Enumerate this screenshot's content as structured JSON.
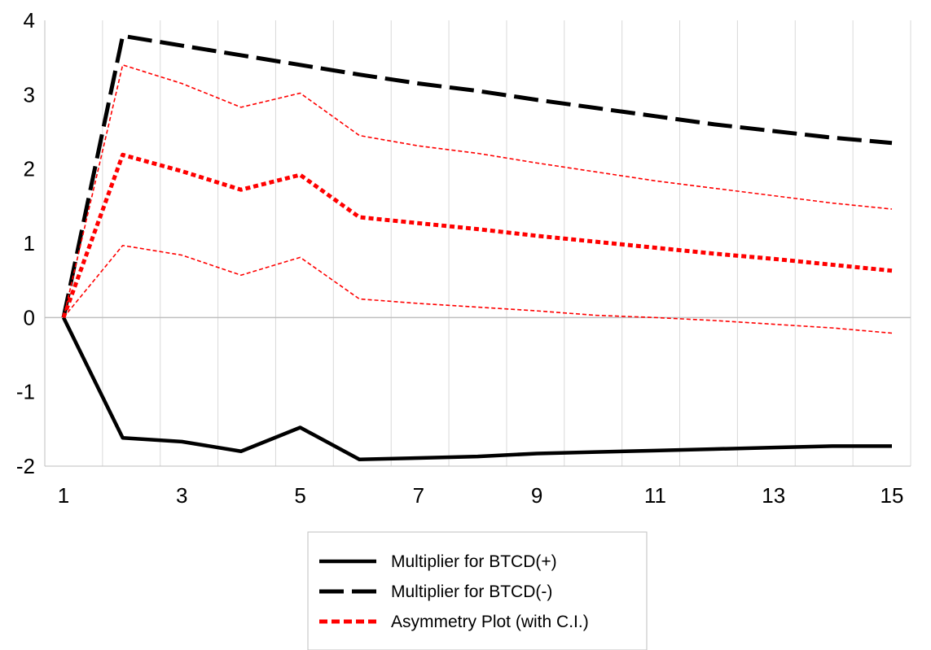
{
  "chart_data": {
    "type": "line",
    "title": "",
    "xlabel": "",
    "ylabel": "",
    "x": [
      1,
      2,
      3,
      4,
      5,
      6,
      7,
      8,
      9,
      10,
      11,
      12,
      13,
      14,
      15
    ],
    "xlim": [
      1,
      15
    ],
    "xticks": [
      1,
      3,
      5,
      7,
      9,
      11,
      13,
      15
    ],
    "ylim": [
      -2,
      4
    ],
    "yticks": [
      -2,
      -1,
      0,
      1,
      2,
      3,
      4
    ],
    "grid": "vertical",
    "legend_position": "bottom",
    "series": [
      {
        "name": "Multiplier for BTCD(+)",
        "color": "#000000",
        "style": "solid",
        "values": [
          0,
          -1.62,
          -1.67,
          -1.8,
          -1.48,
          -1.91,
          -1.89,
          -1.87,
          -1.83,
          -1.81,
          -1.79,
          -1.77,
          -1.75,
          -1.73,
          -1.73
        ]
      },
      {
        "name": "Multiplier for BTCD(-)",
        "color": "#000000",
        "style": "long-dash",
        "values": [
          0,
          3.79,
          3.66,
          3.53,
          3.4,
          3.27,
          3.15,
          3.05,
          2.93,
          2.82,
          2.71,
          2.6,
          2.51,
          2.42,
          2.35
        ]
      },
      {
        "name": "Asymmetry Plot (with C.I.)",
        "color": "#ff0000",
        "style": "dotted-thick",
        "values": [
          0,
          2.19,
          1.97,
          1.72,
          1.92,
          1.35,
          1.27,
          1.19,
          1.1,
          1.02,
          0.94,
          0.86,
          0.79,
          0.71,
          0.63
        ]
      },
      {
        "color": "#ff0000",
        "style": "dotted-thin",
        "ci": "upper",
        "values": [
          0,
          3.4,
          3.15,
          2.83,
          3.02,
          2.45,
          2.31,
          2.21,
          2.08,
          1.96,
          1.84,
          1.74,
          1.64,
          1.54,
          1.46
        ]
      },
      {
        "color": "#ff0000",
        "style": "dotted-thin",
        "ci": "lower",
        "values": [
          0,
          0.97,
          0.84,
          0.57,
          0.81,
          0.25,
          0.19,
          0.14,
          0.09,
          0.03,
          0.0,
          -0.04,
          -0.09,
          -0.14,
          -0.21
        ]
      }
    ],
    "legend": [
      "Multiplier for BTCD(+)",
      "Multiplier for BTCD(-)",
      "Asymmetry Plot (with C.I.)"
    ]
  }
}
